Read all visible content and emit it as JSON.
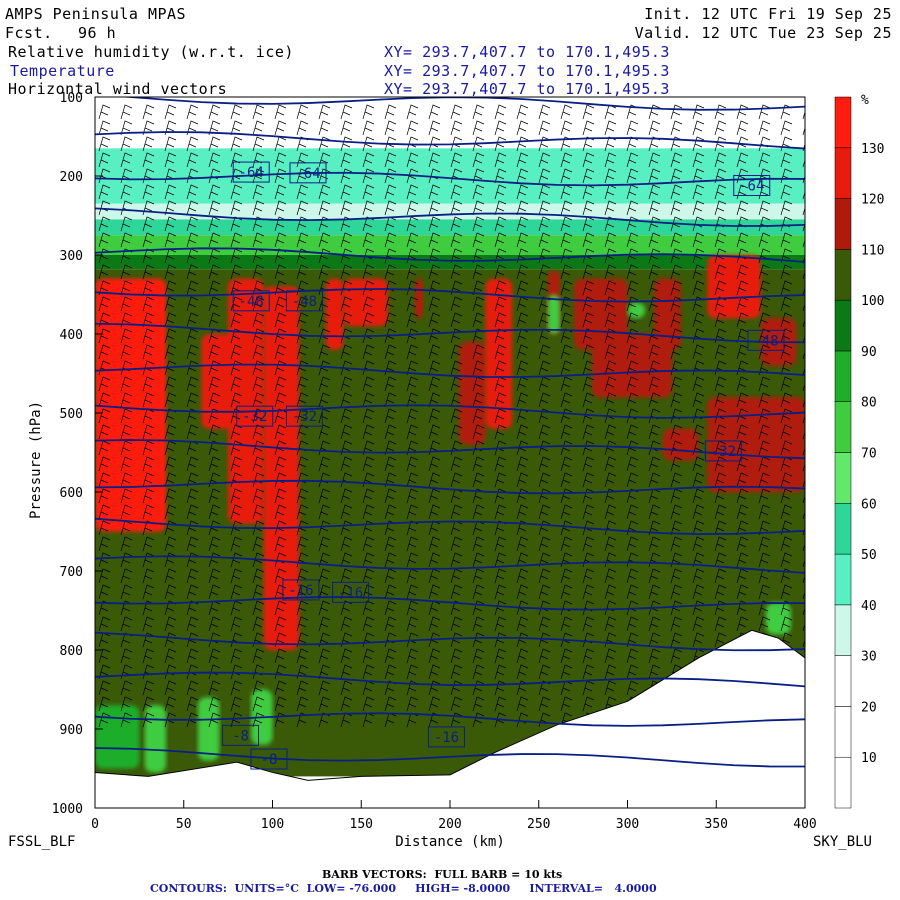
{
  "header": {
    "model": "AMPS Peninsula MPAS",
    "fcst_label": "Fcst.",
    "fcst_value": "96 h",
    "init": "Init. 12 UTC Fri 19 Sep 25",
    "valid": "Valid. 12 UTC Tue 23 Sep 25",
    "fields": [
      {
        "name": "Relative humidity (w.r.t. ice)",
        "xy": "XY= 293.7,407.7 to 170.1,495.3"
      },
      {
        "name": "Temperature",
        "xy": "XY= 293.7,407.7 to 170.1,495.3"
      },
      {
        "name": "Horizontal wind vectors",
        "xy": "XY= 293.7,407.7 to 170.1,495.3"
      }
    ]
  },
  "footer": {
    "left_station": "FSSL_BLF",
    "right_station": "SKY_BLU",
    "barb_note": "BARB VECTORS:  FULL BARB = 10 kts",
    "contour_note": "CONTOURS:  UNITS=°C  LOW= -76.000     HIGH= -8.0000     INTERVAL=   4.0000"
  },
  "colors": {
    "temperature_contour": "#0a1f86",
    "terrain": "#ffffff",
    "barb": "#000000"
  },
  "chart_data": {
    "type": "heatmap",
    "title": "",
    "xlabel": "Distance (km)",
    "ylabel": "Pressure (hPa)",
    "xlim": [
      0,
      400
    ],
    "ylim": [
      1000,
      100
    ],
    "x_ticks": [
      0,
      50,
      100,
      150,
      200,
      250,
      300,
      350,
      400
    ],
    "y_ticks": [
      100,
      200,
      300,
      400,
      500,
      600,
      700,
      800,
      900,
      1000
    ],
    "colorbar": {
      "unit": "%",
      "ticks": [
        10,
        20,
        30,
        40,
        50,
        60,
        70,
        80,
        90,
        100,
        110,
        120,
        130
      ],
      "bins": [
        {
          "from": 0,
          "to": 10,
          "color": "#ffffff"
        },
        {
          "from": 10,
          "to": 20,
          "color": "#ffffff"
        },
        {
          "from": 20,
          "to": 30,
          "color": "#ffffff"
        },
        {
          "from": 30,
          "to": 40,
          "color": "#cdf7e8"
        },
        {
          "from": 40,
          "to": 50,
          "color": "#58f0c2"
        },
        {
          "from": 50,
          "to": 60,
          "color": "#2ed69a"
        },
        {
          "from": 60,
          "to": 70,
          "color": "#62e86a"
        },
        {
          "from": 70,
          "to": 80,
          "color": "#3fcc3f"
        },
        {
          "from": 80,
          "to": 90,
          "color": "#1fae2a"
        },
        {
          "from": 90,
          "to": 100,
          "color": "#0b7a16"
        },
        {
          "from": 100,
          "to": 110,
          "color": "#3b5a08"
        },
        {
          "from": 110,
          "to": 120,
          "color": "#b01a0c"
        },
        {
          "from": 120,
          "to": 130,
          "color": "#e81c0e"
        },
        {
          "from": 130,
          "to": 140,
          "color": "#ff1d0f"
        }
      ]
    },
    "temperature_contours": {
      "units": "°C",
      "low": -76,
      "high": -8,
      "interval": 4,
      "labeled": [
        {
          "label": "-64",
          "x": 88,
          "p": 195
        },
        {
          "label": "-64",
          "x": 120,
          "p": 196
        },
        {
          "label": "-64",
          "x": 370,
          "p": 212
        },
        {
          "label": "-48",
          "x": 88,
          "p": 358
        },
        {
          "label": "-48",
          "x": 118,
          "p": 358
        },
        {
          "label": "-48",
          "x": 378,
          "p": 408
        },
        {
          "label": "-32",
          "x": 90,
          "p": 504
        },
        {
          "label": "-32",
          "x": 118,
          "p": 504
        },
        {
          "label": "-32",
          "x": 354,
          "p": 548
        },
        {
          "label": "-16",
          "x": 116,
          "p": 724
        },
        {
          "label": "-16",
          "x": 144,
          "p": 727
        },
        {
          "label": "-16",
          "x": 198,
          "p": 910
        },
        {
          "label": "-8",
          "x": 82,
          "p": 908
        },
        {
          "label": "-8",
          "x": 98,
          "p": 938
        }
      ]
    },
    "terrain_profile_hPa": [
      {
        "x": 0,
        "p": 955
      },
      {
        "x": 30,
        "p": 960
      },
      {
        "x": 80,
        "p": 942
      },
      {
        "x": 100,
        "p": 955
      },
      {
        "x": 120,
        "p": 965
      },
      {
        "x": 150,
        "p": 960
      },
      {
        "x": 200,
        "p": 958
      },
      {
        "x": 225,
        "p": 930
      },
      {
        "x": 260,
        "p": 895
      },
      {
        "x": 300,
        "p": 865
      },
      {
        "x": 340,
        "p": 810
      },
      {
        "x": 370,
        "p": 775
      },
      {
        "x": 385,
        "p": 785
      },
      {
        "x": 400,
        "p": 810
      }
    ]
  }
}
